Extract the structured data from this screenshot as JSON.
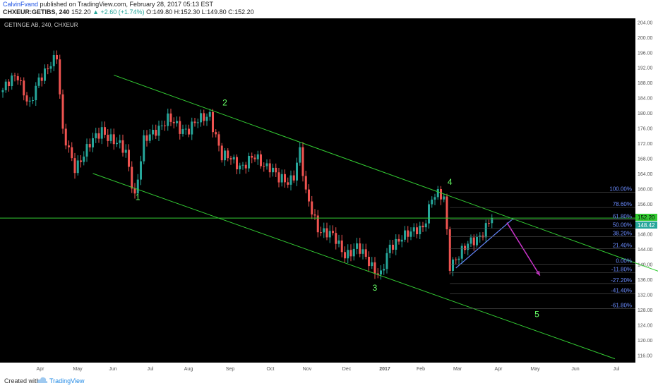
{
  "header": {
    "author": "CalvinFvand",
    "published": " published on TradingView.com, February 28, 2017 05:13 EST",
    "ticker": "CHXEUR:GETIBS, 240",
    "last": "152.20",
    "change": "▲ +2.60 (+1.74%)",
    "ohlc": "O:149.80 H:152.30 L:149.80 C:152.20"
  },
  "footer": {
    "created_with": "Created with",
    "brand": "TradingView"
  },
  "chart_data": {
    "type": "candlestick",
    "title": "GETINGE AB, 240, CHXEUR",
    "ylim": [
      114,
      205
    ],
    "y_ticks": [
      "116.00",
      "120.00",
      "124.00",
      "128.00",
      "132.00",
      "136.00",
      "140.00",
      "144.00",
      "148.00",
      "152.00",
      "156.00",
      "160.00",
      "164.00",
      "168.00",
      "172.00",
      "176.00",
      "180.00",
      "184.00",
      "188.00",
      "192.00",
      "196.00",
      "200.00",
      "204.00"
    ],
    "x_ticks": [
      "Apr",
      "May",
      "Jun",
      "Jul",
      "Aug",
      "Sep",
      "Oct",
      "Nov",
      "Dec",
      "2017",
      "Feb",
      "Mar",
      "Apr",
      "May",
      "Jun",
      "Jul"
    ],
    "price_path": [
      [
        0,
        186
      ],
      [
        5,
        190
      ],
      [
        9,
        182
      ],
      [
        12,
        188
      ],
      [
        16,
        194
      ],
      [
        18,
        195
      ],
      [
        20,
        174
      ],
      [
        24,
        166
      ],
      [
        28,
        170
      ],
      [
        33,
        176
      ],
      [
        37,
        172
      ],
      [
        41,
        170
      ],
      [
        44,
        158
      ],
      [
        47,
        172
      ],
      [
        51,
        176
      ],
      [
        55,
        178
      ],
      [
        59,
        176
      ],
      [
        62,
        176
      ],
      [
        66,
        178
      ],
      [
        69,
        180
      ],
      [
        73,
        168
      ],
      [
        76,
        168
      ],
      [
        80,
        166
      ],
      [
        84,
        168
      ],
      [
        89,
        166
      ],
      [
        92,
        162
      ],
      [
        95,
        162
      ],
      [
        97,
        164
      ],
      [
        99,
        170
      ],
      [
        101,
        158
      ],
      [
        105,
        150
      ],
      [
        110,
        147
      ],
      [
        114,
        143
      ],
      [
        118,
        144
      ],
      [
        122,
        141
      ],
      [
        126,
        137
      ],
      [
        129,
        144
      ],
      [
        133,
        148
      ],
      [
        137,
        148
      ],
      [
        140,
        150
      ],
      [
        143,
        158
      ],
      [
        145,
        158
      ],
      [
        147,
        157
      ],
      [
        149,
        140
      ],
      [
        151,
        142
      ],
      [
        154,
        144
      ],
      [
        158,
        147
      ],
      [
        161,
        150
      ],
      [
        163,
        152.2
      ]
    ],
    "current_price": "152.20",
    "marker_price": "148.42",
    "waves": [
      {
        "label": "1",
        "x": 45,
        "y": 157
      },
      {
        "label": "2",
        "x": 74,
        "y": 182
      },
      {
        "label": "3",
        "x": 124,
        "y": 133
      },
      {
        "label": "4",
        "x": 149,
        "y": 161
      },
      {
        "label": "5",
        "x": 178,
        "y": 126
      }
    ],
    "fib_levels": [
      {
        "label": "100.00%",
        "price": 159.0
      },
      {
        "label": "78.60%",
        "price": 155.0
      },
      {
        "label": "61.80%",
        "price": 151.8
      },
      {
        "label": "50.00%",
        "price": 149.5
      },
      {
        "label": "38.20%",
        "price": 147.3
      },
      {
        "label": "21.40%",
        "price": 144.1
      },
      {
        "label": "0.00%",
        "price": 140.0
      },
      {
        "label": "-11.80%",
        "price": 137.8
      },
      {
        "label": "-27.20%",
        "price": 134.9
      },
      {
        "label": "-41.40%",
        "price": 132.2
      },
      {
        "label": "-61.80%",
        "price": 128.3
      }
    ],
    "upper_channel": [
      [
        37,
        190
      ],
      [
        219,
        138
      ]
    ],
    "lower_channel": [
      [
        30,
        164
      ],
      [
        204,
        115
      ]
    ],
    "horizontal_line": 152.2,
    "support_line": [
      [
        151,
        139
      ],
      [
        170,
        152
      ]
    ],
    "projection_arrow": [
      [
        168,
        151
      ],
      [
        179,
        137
      ]
    ],
    "colors": {
      "background": "#000000",
      "up": "#26a69a",
      "down": "#ef5350",
      "channel": "#33cc33",
      "wave_label": "#66ff66",
      "fib_label": "#6b8cff",
      "projection": "#cc33cc",
      "support": "#6688ff"
    }
  }
}
